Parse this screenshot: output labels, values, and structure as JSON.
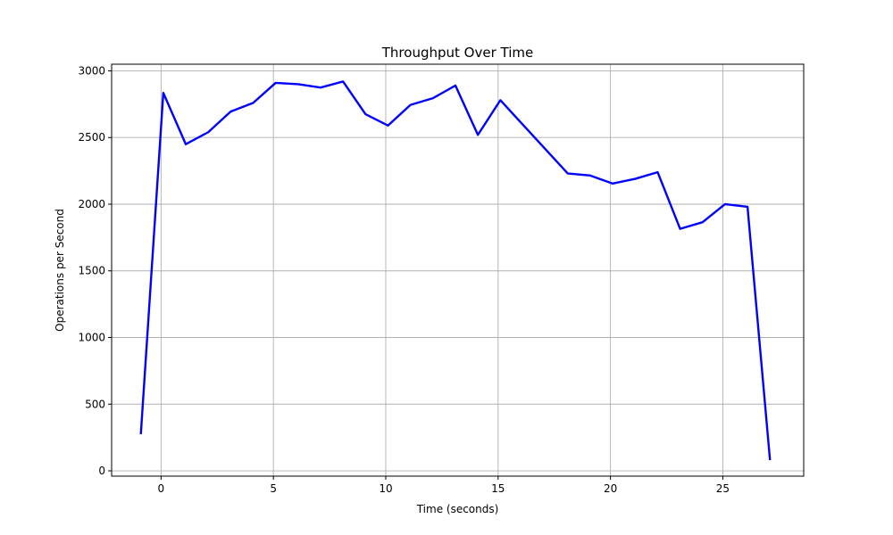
{
  "chart_data": {
    "type": "line",
    "title": "Throughput Over Time",
    "xlabel": "Time (seconds)",
    "ylabel": "Operations per Second",
    "xlim": [
      -2.2,
      28.6
    ],
    "ylim": [
      -40,
      3050
    ],
    "x_ticks": [
      0,
      5,
      10,
      15,
      20,
      25
    ],
    "y_ticks": [
      0,
      500,
      1000,
      1500,
      2000,
      2500,
      3000
    ],
    "grid": true,
    "series": [
      {
        "color": "#0000ff",
        "x": [
          -0.9,
          0.1,
          1.1,
          2.1,
          3.1,
          4.1,
          5.1,
          6.1,
          7.1,
          8.1,
          9.1,
          10.1,
          11.1,
          12.1,
          13.1,
          14.1,
          15.1,
          18.1,
          19.1,
          20.1,
          21.1,
          22.1,
          23.1,
          24.1,
          25.1,
          26.1,
          27.1
        ],
        "y": [
          275,
          2835,
          2450,
          2540,
          2695,
          2760,
          2910,
          2900,
          2875,
          2920,
          2675,
          2590,
          2745,
          2795,
          2890,
          2520,
          2780,
          2230,
          2215,
          2155,
          2190,
          2240,
          1815,
          1865,
          2000,
          1980,
          80
        ]
      }
    ]
  }
}
